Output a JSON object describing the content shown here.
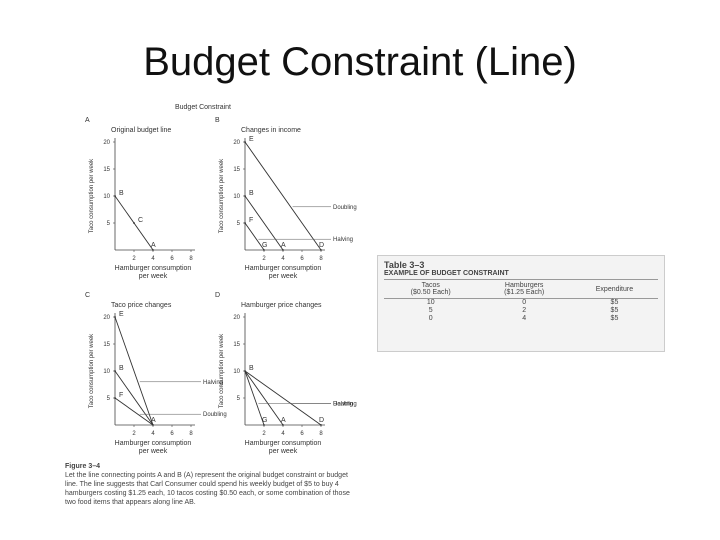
{
  "title": "Budget Constraint (Line)",
  "figure": {
    "heading": "Budget Constraint",
    "panels": [
      {
        "letter": "A",
        "title": "Original budget line",
        "ylabel": "Taco consumption per week",
        "xlabel": [
          "Hamburger consumption",
          "per week"
        ],
        "xlim": [
          0,
          8
        ],
        "ylim": [
          0,
          20
        ],
        "xticks": [
          2,
          4,
          6,
          8
        ],
        "yticks": [
          5,
          10,
          15,
          20
        ],
        "lines": [
          {
            "x": [
              0,
              4
            ],
            "y": [
              10,
              0
            ]
          }
        ],
        "points": [
          {
            "label": "B",
            "x": 0,
            "y": 10
          },
          {
            "label": "C",
            "x": 2,
            "y": 5
          },
          {
            "label": "A",
            "x": 4,
            "y": 0
          }
        ]
      },
      {
        "letter": "B",
        "title": "Changes in income",
        "ylabel": "Taco consumption per week",
        "xlabel": [
          "Hamburger consumption",
          "per week"
        ],
        "xlim": [
          0,
          8
        ],
        "ylim": [
          0,
          20
        ],
        "xticks": [
          2,
          4,
          6,
          8
        ],
        "yticks": [
          5,
          10,
          15,
          20
        ],
        "lines": [
          {
            "x": [
              0,
              8
            ],
            "y": [
              20,
              0
            ],
            "label": "Doubling"
          },
          {
            "x": [
              0,
              4
            ],
            "y": [
              10,
              0
            ]
          },
          {
            "x": [
              0,
              2
            ],
            "y": [
              5,
              0
            ],
            "label": "Halving"
          }
        ],
        "points": [
          {
            "label": "E",
            "x": 0,
            "y": 20
          },
          {
            "label": "B",
            "x": 0,
            "y": 10
          },
          {
            "label": "F",
            "x": 0,
            "y": 5
          },
          {
            "label": "G",
            "x": 2,
            "y": 0
          },
          {
            "label": "A",
            "x": 4,
            "y": 0
          },
          {
            "label": "D",
            "x": 8,
            "y": 0
          }
        ]
      },
      {
        "letter": "C",
        "title": "Taco price changes",
        "ylabel": "Taco consumption per week",
        "xlabel": [
          "Hamburger consumption",
          "per week"
        ],
        "xlim": [
          0,
          8
        ],
        "ylim": [
          0,
          20
        ],
        "xticks": [
          2,
          4,
          6,
          8
        ],
        "yticks": [
          5,
          10,
          15,
          20
        ],
        "lines": [
          {
            "x": [
              0,
              4
            ],
            "y": [
              20,
              0
            ],
            "label": "Halving"
          },
          {
            "x": [
              0,
              4
            ],
            "y": [
              10,
              0
            ]
          },
          {
            "x": [
              0,
              4
            ],
            "y": [
              5,
              0
            ],
            "label": "Doubling"
          }
        ],
        "points": [
          {
            "label": "E",
            "x": 0,
            "y": 20
          },
          {
            "label": "B",
            "x": 0,
            "y": 10
          },
          {
            "label": "F",
            "x": 0,
            "y": 5
          },
          {
            "label": "A",
            "x": 4,
            "y": 0
          }
        ]
      },
      {
        "letter": "D",
        "title": "Hamburger price changes",
        "ylabel": "Taco consumption per week",
        "xlabel": [
          "Hamburger consumption",
          "per week"
        ],
        "xlim": [
          0,
          8
        ],
        "ylim": [
          0,
          20
        ],
        "xticks": [
          2,
          4,
          6,
          8
        ],
        "yticks": [
          5,
          10,
          15,
          20
        ],
        "lines": [
          {
            "x": [
              0,
              8
            ],
            "y": [
              10,
              0
            ],
            "label": "Halving"
          },
          {
            "x": [
              0,
              4
            ],
            "y": [
              10,
              0
            ]
          },
          {
            "x": [
              0,
              2
            ],
            "y": [
              10,
              0
            ],
            "label": "Doubling"
          }
        ],
        "points": [
          {
            "label": "B",
            "x": 0,
            "y": 10
          },
          {
            "label": "G",
            "x": 2,
            "y": 0
          },
          {
            "label": "A",
            "x": 4,
            "y": 0
          },
          {
            "label": "D",
            "x": 8,
            "y": 0
          }
        ]
      }
    ],
    "caption_title": "Figure 3–4",
    "caption": "Let the line connecting points A and B (A) represent the original budget constraint or budget line. The line suggests that Carl Consumer could spend his weekly budget of $5 to buy 4 hamburgers costing $1.25 each, 10 tacos costing $0.50 each, or some combination of those two food items that appears along line AB."
  },
  "table": {
    "number": "Table 3–3",
    "title": "Example of Budget Constraint",
    "columns": [
      [
        "Tacos",
        "($0.50 Each)"
      ],
      [
        "Hamburgers",
        "($1.25 Each)"
      ],
      [
        "Expenditure"
      ]
    ],
    "rows": [
      [
        10,
        0,
        "$5"
      ],
      [
        5,
        2,
        "$5"
      ],
      [
        0,
        4,
        "$5"
      ]
    ]
  }
}
